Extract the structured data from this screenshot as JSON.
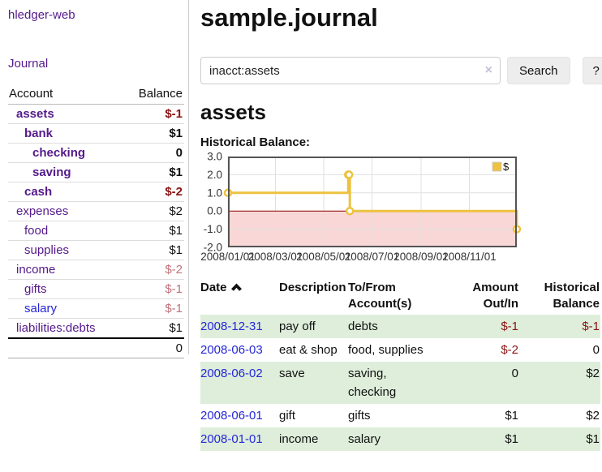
{
  "brand": "hledger-web",
  "nav": {
    "journal": "Journal"
  },
  "sidebar": {
    "header": {
      "account": "Account",
      "balance": "Balance"
    },
    "accounts": [
      {
        "name": "assets",
        "balance": "$-1",
        "indent": 0,
        "bold": true,
        "balance_negative": true
      },
      {
        "name": "bank",
        "balance": "$1",
        "indent": 1,
        "bold": true,
        "balance_negative": false
      },
      {
        "name": "checking",
        "balance": "0",
        "indent": 2,
        "bold": true,
        "balance_negative": false
      },
      {
        "name": "saving",
        "balance": "$1",
        "indent": 2,
        "bold": true,
        "balance_negative": false
      },
      {
        "name": "cash",
        "balance": "$-2",
        "indent": 1,
        "bold": true,
        "balance_negative": true
      },
      {
        "name": "expenses",
        "balance": "$2",
        "indent": 0,
        "bold": false,
        "balance_negative": false
      },
      {
        "name": "food",
        "balance": "$1",
        "indent": 1,
        "bold": false,
        "balance_negative": false
      },
      {
        "name": "supplies",
        "balance": "$1",
        "indent": 1,
        "bold": false,
        "balance_negative": false
      },
      {
        "name": "income",
        "balance": "$-2",
        "indent": 0,
        "bold": false,
        "balance_negative": true
      },
      {
        "name": "gifts",
        "balance": "$-1",
        "indent": 1,
        "bold": false,
        "balance_negative": true
      },
      {
        "name": "salary",
        "balance": "$-1",
        "indent": 1,
        "bold": false,
        "balance_negative": true
      },
      {
        "name": "liabilities:debts",
        "balance": "$1",
        "indent": 0,
        "bold": false,
        "balance_negative": false
      }
    ],
    "total": "0"
  },
  "main": {
    "title": "sample.journal",
    "search": {
      "value": "inacct:assets",
      "clear_label": "×",
      "button": "Search",
      "help": "?"
    },
    "account_title": "assets",
    "chart_heading": "Historical Balance:"
  },
  "chart_data": {
    "type": "line",
    "title": "Historical Balance",
    "legend": {
      "label": "$",
      "position": "top-right"
    },
    "series": [
      {
        "name": "$",
        "color": "#edc240",
        "steps": true,
        "points": [
          {
            "date": "2008-01-01",
            "value": 1
          },
          {
            "date": "2008-06-01",
            "value": 2
          },
          {
            "date": "2008-06-02",
            "value": 2
          },
          {
            "date": "2008-06-03",
            "value": 0
          },
          {
            "date": "2008-12-31",
            "value": -1
          }
        ]
      }
    ],
    "x_range": [
      "2008-01-01",
      "2008-12-31"
    ],
    "x_tick_dates": [
      "2008-01-01",
      "2008-03-01",
      "2008-05-01",
      "2008-07-01",
      "2008-09-01",
      "2008-11-01"
    ],
    "x_tick_labels": [
      "2008/01/01",
      "2008/03/01",
      "2008/05/01",
      "2008/07/01",
      "2008/09/01",
      "2008/11/01"
    ],
    "y_ticks": [
      3,
      2,
      1,
      0,
      -1,
      -2
    ],
    "y_tick_labels": [
      "3.0",
      "2.0",
      "1.0",
      "0.0",
      "-1.0",
      "-2.0"
    ],
    "ylim": [
      -2,
      3
    ],
    "grid": true,
    "colors": {
      "line": "#edc240",
      "negative_fill": "#f9d7d7",
      "zero_line": "#8b0000",
      "grid": "#e0e0e0",
      "border": "#545454"
    }
  },
  "register": {
    "headers": {
      "date": "Date",
      "description": "Description",
      "accounts": "To/From Account(s)",
      "amount": "Amount Out/In",
      "balance": "Historical Balance"
    },
    "rows": [
      {
        "date": "2008-12-31",
        "description": "pay off",
        "accounts": "debts",
        "amount": "$-1",
        "balance": "$-1",
        "amount_negative": true,
        "balance_negative": true,
        "shaded": true
      },
      {
        "date": "2008-06-03",
        "description": "eat & shop",
        "accounts": "food, supplies",
        "amount": "$-2",
        "balance": "0",
        "amount_negative": true,
        "balance_negative": false,
        "shaded": false
      },
      {
        "date": "2008-06-02",
        "description": "save",
        "accounts": "saving, checking",
        "amount": "0",
        "balance": "$2",
        "amount_negative": false,
        "balance_negative": false,
        "shaded": true
      },
      {
        "date": "2008-06-01",
        "description": "gift",
        "accounts": "gifts",
        "amount": "$1",
        "balance": "$2",
        "amount_negative": false,
        "balance_negative": false,
        "shaded": false
      },
      {
        "date": "2008-01-01",
        "description": "income",
        "accounts": "salary",
        "amount": "$1",
        "balance": "$1",
        "amount_negative": false,
        "balance_negative": false,
        "shaded": true
      }
    ]
  }
}
